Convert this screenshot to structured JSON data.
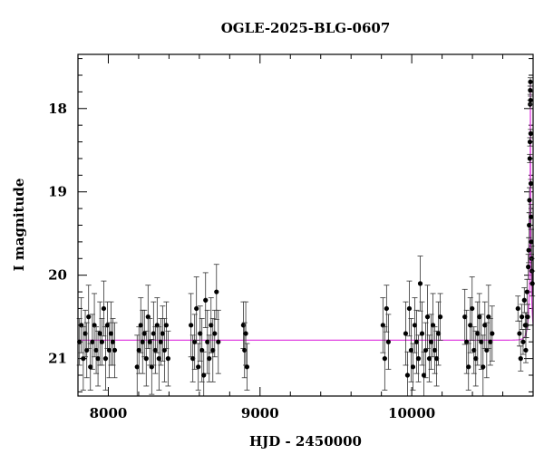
{
  "chart_data": {
    "type": "scatter",
    "title": "OGLE-2025-BLG-0607",
    "xlabel": "HJD - 2450000",
    "ylabel": "I magnitude",
    "xlim": [
      7800,
      10800
    ],
    "ylim": [
      21.45,
      17.35
    ],
    "y_inverted": true,
    "x_ticks": [
      8000,
      9000,
      10000
    ],
    "y_ticks": [
      18,
      19,
      20,
      21
    ],
    "grid": false,
    "legend": "none",
    "colors": {
      "points": "#000000",
      "model": "#e040e0"
    },
    "baseline_mag": 20.78,
    "peak_hjd": 10782,
    "peak_mag": 17.68,
    "season_points": [
      [
        7810,
        20.8
      ],
      [
        7822,
        20.6
      ],
      [
        7835,
        21.0
      ],
      [
        7848,
        20.7
      ],
      [
        7858,
        20.9
      ],
      [
        7870,
        20.5
      ],
      [
        7882,
        21.1
      ],
      [
        7895,
        20.8
      ],
      [
        7908,
        20.6
      ],
      [
        7920,
        20.9
      ],
      [
        7932,
        21.0
      ],
      [
        7945,
        20.7
      ],
      [
        7958,
        20.8
      ],
      [
        7970,
        20.4
      ],
      [
        7982,
        21.0
      ],
      [
        7994,
        20.6
      ],
      [
        8006,
        20.9
      ],
      [
        8018,
        20.7
      ],
      [
        8030,
        20.8
      ],
      [
        8042,
        20.9
      ],
      [
        8190,
        21.1
      ],
      [
        8202,
        20.9
      ],
      [
        8214,
        20.6
      ],
      [
        8226,
        20.8
      ],
      [
        8238,
        20.7
      ],
      [
        8250,
        21.0
      ],
      [
        8262,
        20.5
      ],
      [
        8274,
        20.8
      ],
      [
        8286,
        21.1
      ],
      [
        8298,
        20.7
      ],
      [
        8310,
        20.9
      ],
      [
        8322,
        20.6
      ],
      [
        8334,
        21.0
      ],
      [
        8346,
        20.8
      ],
      [
        8358,
        20.7
      ],
      [
        8370,
        20.9
      ],
      [
        8382,
        20.6
      ],
      [
        8394,
        21.0
      ],
      [
        8545,
        20.6
      ],
      [
        8557,
        21.0
      ],
      [
        8569,
        20.8
      ],
      [
        8581,
        20.4
      ],
      [
        8593,
        21.1
      ],
      [
        8605,
        20.7
      ],
      [
        8617,
        20.9
      ],
      [
        8629,
        21.2
      ],
      [
        8641,
        20.3
      ],
      [
        8653,
        20.8
      ],
      [
        8665,
        21.0
      ],
      [
        8677,
        20.6
      ],
      [
        8689,
        20.9
      ],
      [
        8701,
        20.7
      ],
      [
        8713,
        20.2
      ],
      [
        8725,
        20.8
      ],
      [
        8890,
        20.6
      ],
      [
        8898,
        20.9
      ],
      [
        8906,
        20.7
      ],
      [
        8914,
        21.1
      ],
      [
        9810,
        20.6
      ],
      [
        9822,
        21.0
      ],
      [
        9834,
        20.4
      ],
      [
        9846,
        20.8
      ],
      [
        9960,
        20.7
      ],
      [
        9972,
        21.2
      ],
      [
        9984,
        20.4
      ],
      [
        9996,
        20.9
      ],
      [
        10008,
        21.1
      ],
      [
        10020,
        20.6
      ],
      [
        10032,
        20.8
      ],
      [
        10044,
        21.0
      ],
      [
        10056,
        20.1
      ],
      [
        10068,
        20.7
      ],
      [
        10080,
        21.2
      ],
      [
        10092,
        20.9
      ],
      [
        10104,
        20.5
      ],
      [
        10116,
        21.0
      ],
      [
        10128,
        20.8
      ],
      [
        10140,
        20.6
      ],
      [
        10152,
        20.9
      ],
      [
        10164,
        21.0
      ],
      [
        10176,
        20.7
      ],
      [
        10188,
        20.5
      ],
      [
        10350,
        20.5
      ],
      [
        10362,
        20.8
      ],
      [
        10374,
        21.1
      ],
      [
        10386,
        20.6
      ],
      [
        10398,
        20.4
      ],
      [
        10410,
        20.9
      ],
      [
        10422,
        21.0
      ],
      [
        10434,
        20.7
      ],
      [
        10446,
        20.5
      ],
      [
        10458,
        20.8
      ],
      [
        10470,
        21.1
      ],
      [
        10482,
        20.6
      ],
      [
        10494,
        20.9
      ],
      [
        10506,
        20.5
      ],
      [
        10518,
        20.8
      ],
      [
        10530,
        20.7
      ]
    ],
    "peak_points": [
      [
        10700,
        20.4
      ],
      [
        10710,
        20.7
      ],
      [
        10718,
        21.0
      ],
      [
        10726,
        20.5
      ],
      [
        10734,
        20.8
      ],
      [
        10742,
        20.3
      ],
      [
        10748,
        20.6
      ],
      [
        10752,
        20.9
      ],
      [
        10756,
        20.6
      ],
      [
        10760,
        20.2
      ],
      [
        10764,
        20.5
      ],
      [
        10768,
        19.9
      ],
      [
        10771,
        19.7
      ],
      [
        10774,
        19.4
      ],
      [
        10776,
        19.1
      ],
      [
        10778,
        18.6
      ],
      [
        10779,
        18.4
      ],
      [
        10780,
        17.95
      ],
      [
        10781,
        17.78
      ],
      [
        10782,
        17.68
      ],
      [
        10783,
        17.9
      ],
      [
        10784,
        18.3
      ],
      [
        10785,
        18.9
      ],
      [
        10786,
        19.3
      ],
      [
        10788,
        19.6
      ],
      [
        10790,
        19.8
      ],
      [
        10792,
        19.95
      ],
      [
        10795,
        20.1
      ]
    ]
  }
}
